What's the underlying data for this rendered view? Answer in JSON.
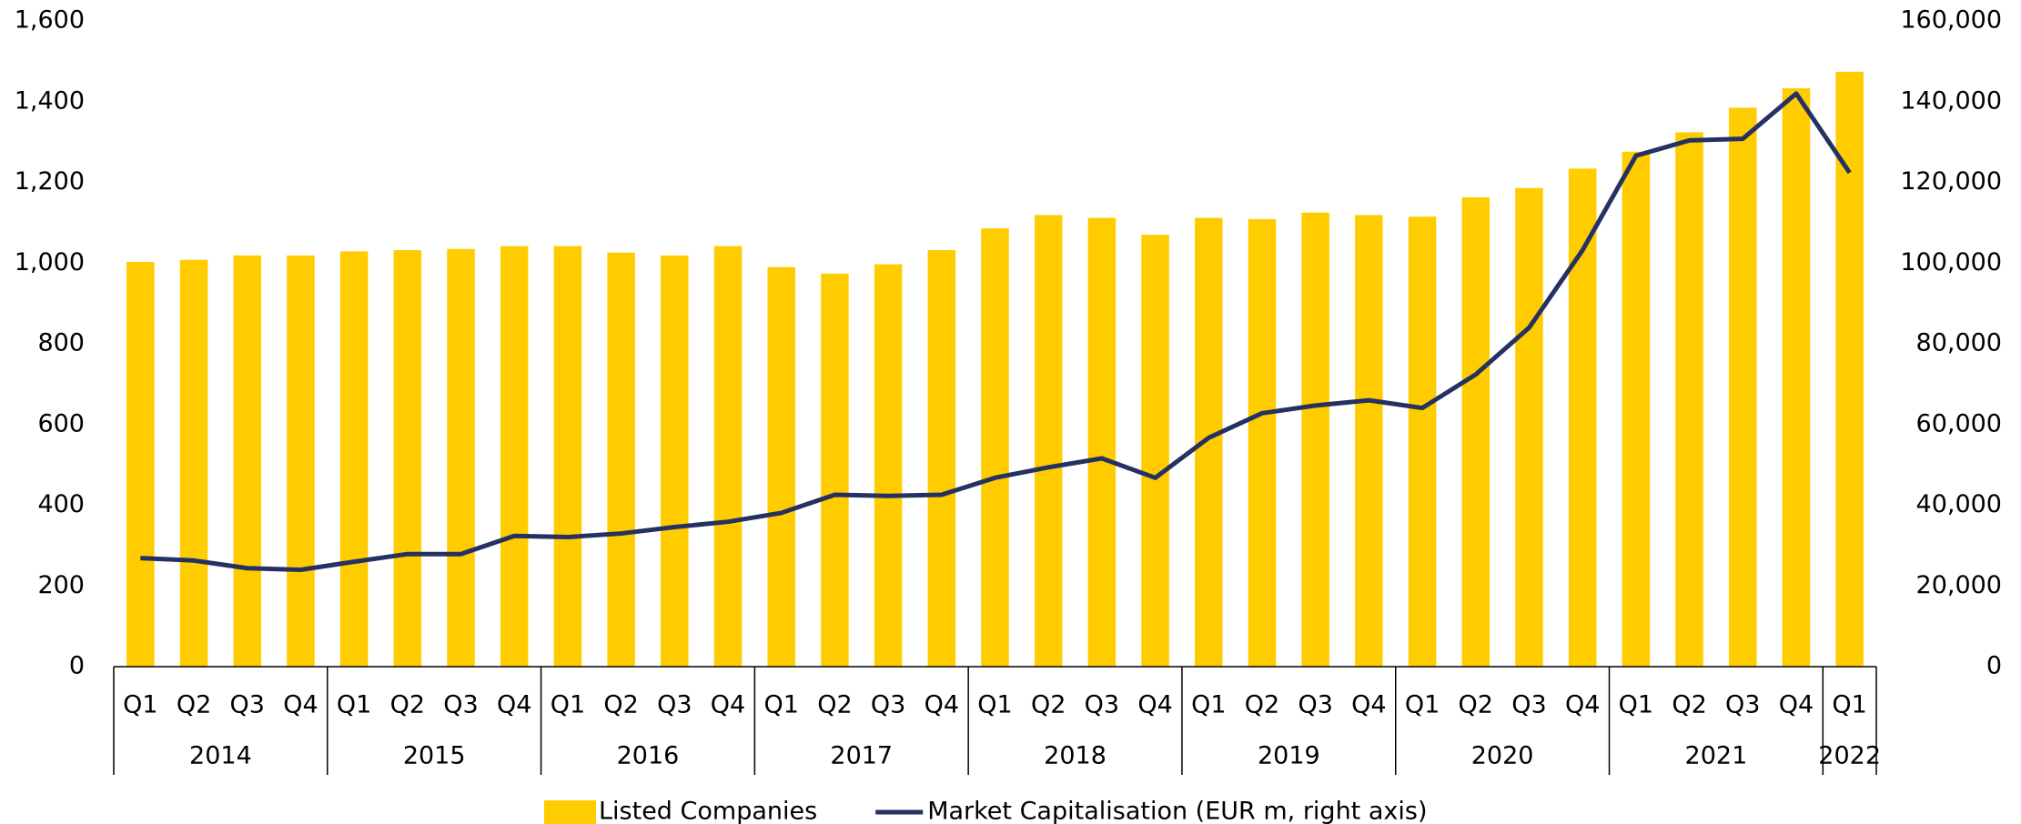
{
  "chart_data": {
    "type": "bar_line",
    "categories": [
      "Q1",
      "Q2",
      "Q3",
      "Q4",
      "Q1",
      "Q2",
      "Q3",
      "Q4",
      "Q1",
      "Q2",
      "Q3",
      "Q4",
      "Q1",
      "Q2",
      "Q3",
      "Q4",
      "Q1",
      "Q2",
      "Q3",
      "Q4",
      "Q1",
      "Q2",
      "Q3",
      "Q4",
      "Q1",
      "Q2",
      "Q3",
      "Q4",
      "Q1",
      "Q2",
      "Q3",
      "Q4",
      "Q1"
    ],
    "years": [
      "2014",
      "2015",
      "2016",
      "2017",
      "2018",
      "2019",
      "2020",
      "2021",
      "2022"
    ],
    "series": [
      {
        "name": "Listed Companies",
        "type": "bar",
        "color": "#ffcc00",
        "values": [
          1003,
          1008,
          1019,
          1019,
          1029,
          1032,
          1035,
          1042,
          1042,
          1026,
          1019,
          1042,
          990,
          974,
          997,
          1032,
          1086,
          1119,
          1112,
          1070,
          1112,
          1109,
          1125,
          1119,
          1115,
          1163,
          1186,
          1234,
          1276,
          1324,
          1385,
          1433,
          1474
        ]
      },
      {
        "name": "Market Capitalisation (EUR m, right axis)",
        "type": "line",
        "axis": "y2",
        "color": "#253163",
        "values": [
          26900,
          26300,
          24400,
          24000,
          26000,
          27900,
          27900,
          32400,
          32100,
          33000,
          34600,
          35900,
          38100,
          42600,
          42300,
          42600,
          46800,
          49400,
          51600,
          46800,
          56700,
          62800,
          64700,
          66000,
          64100,
          72400,
          84000,
          103200,
          126600,
          130400,
          130800,
          142000,
          122400
        ]
      }
    ],
    "ylim": [
      0,
      1600
    ],
    "yticks": [
      0,
      200,
      400,
      600,
      800,
      {
        "value": 1000,
        "label": "1,000"
      },
      {
        "value": 1200,
        "label": "1,200"
      },
      {
        "value": 1400,
        "label": "1,400"
      },
      {
        "value": 1600,
        "label": "1,600"
      }
    ],
    "y2lim": [
      0,
      160000
    ],
    "y2ticks": [
      0,
      {
        "value": 20000,
        "label": "20,000"
      },
      {
        "value": 40000,
        "label": "40,000"
      },
      {
        "value": 60000,
        "label": "60,000"
      },
      {
        "value": 80000,
        "label": "80,000"
      },
      {
        "value": 100000,
        "label": "100,000"
      },
      {
        "value": 120000,
        "label": "120,000"
      },
      {
        "value": 140000,
        "label": "140,000"
      },
      {
        "value": 160000,
        "label": "160,000"
      }
    ],
    "legend": "bottom"
  }
}
